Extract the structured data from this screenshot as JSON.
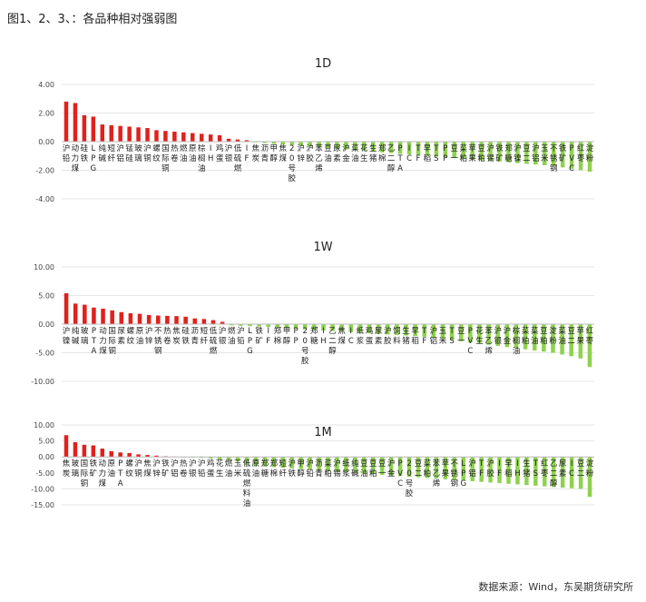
{
  "figure_title": "图1、2、3、：各品种相对强弱图",
  "source": "数据来源：Wind，东吴期货研究所",
  "colors": {
    "positive": "#e0211c",
    "negative": "#8fd14f",
    "axis": "#bbbbbb",
    "grid": "#e6e6e6"
  },
  "chart_data": [
    {
      "type": "bar",
      "title": "1D",
      "ylim": [
        -4,
        4
      ],
      "yticks": [
        4,
        2,
        0,
        -2,
        -4
      ],
      "ytick_labels": [
        "4.00",
        "2.00",
        "0.00",
        "-2.00",
        "-4.00"
      ],
      "grid": true,
      "categories": [
        "沪铅",
        "动力煤",
        "硅铁",
        "LPG",
        "纯碱",
        "短纤",
        "沪铝",
        "锰硅",
        "玻璃",
        "沪铜",
        "螺纹",
        "国际铜",
        "热卷",
        "燃油",
        "原油",
        "棕榈油",
        "IH",
        "鸡蛋",
        "沪银",
        "低硫燃",
        "IF",
        "焦炭",
        "沥青",
        "甲醇",
        "焦煤",
        "20号胶",
        "沪锌",
        "沪胶",
        "苯乙烯",
        "豆油",
        "尿素",
        "沪金",
        "菜油",
        "花生",
        "生猪",
        "郑棉",
        "乙二醇",
        "PTA",
        "IC",
        "TF",
        "早稻",
        "TS",
        "PP",
        "豆一",
        "菜粕",
        "苹果",
        "豆粕",
        "沪锡",
        "铁矿",
        "郑糖",
        "沪镍",
        "豆二",
        "沪铝",
        "玉米",
        "不锈钢",
        "铁矿",
        "PVC",
        "红枣",
        "淀粉"
      ],
      "values": [
        2.8,
        2.7,
        1.85,
        1.75,
        1.2,
        1.15,
        1.1,
        1.05,
        1.0,
        0.95,
        0.8,
        0.75,
        0.7,
        0.65,
        0.6,
        0.55,
        0.5,
        0.45,
        0.2,
        0.15,
        0.1,
        -0.05,
        -0.1,
        -0.15,
        -0.2,
        -0.25,
        -0.3,
        -0.35,
        -0.4,
        -0.45,
        -0.5,
        -0.55,
        -0.6,
        -0.65,
        -0.7,
        -0.75,
        -0.8,
        -0.85,
        -0.9,
        -0.95,
        -1.0,
        -1.05,
        -1.1,
        -1.15,
        -1.2,
        -1.25,
        -1.3,
        -1.35,
        -1.4,
        -1.45,
        -1.5,
        -1.55,
        -1.6,
        -1.65,
        -1.7,
        -1.8,
        -1.9,
        -2.0,
        -2.1
      ]
    },
    {
      "type": "bar",
      "title": "1W",
      "ylim": [
        -10,
        10
      ],
      "yticks": [
        10,
        5,
        0,
        -5,
        -10
      ],
      "ytick_labels": [
        "10.00",
        "5.00",
        "0.00",
        "-5.00",
        "-10.00"
      ],
      "grid": true,
      "categories": [
        "沪镍",
        "纯碱",
        "玻璃",
        "PTA",
        "动力煤",
        "国际铜",
        "尿素",
        "螺纹",
        "原油",
        "沪锌",
        "不锈钢",
        "热卷",
        "焦炭",
        "硅铁",
        "沥青",
        "短纤",
        "低硫燃",
        "沪银",
        "燃油",
        "沪铅",
        "LPG",
        "铁矿",
        "IF",
        "郑棉",
        "甲醇",
        "PP",
        "20号胶",
        "郑糖",
        "IH",
        "乙二醇",
        "焦煤",
        "IC",
        "纸浆",
        "鸡蛋",
        "尿素",
        "沪胶",
        "饲料",
        "生猪",
        "早稻",
        "TF",
        "沪铝",
        "玉米",
        "TS",
        "豆一",
        "PVC",
        "花生",
        "苯乙烯",
        "沪银",
        "沪金",
        "棕榈油",
        "菜粕",
        "菜油",
        "豆粕",
        "淀粉",
        "菜油",
        "豆二",
        "苹果",
        "红枣"
      ],
      "values": [
        5.4,
        3.6,
        3.4,
        2.9,
        2.7,
        2.4,
        2.1,
        1.9,
        1.8,
        1.6,
        1.5,
        1.45,
        1.4,
        1.3,
        1.0,
        0.9,
        0.7,
        0.4,
        -0.2,
        -0.3,
        -0.35,
        -0.4,
        -0.5,
        -0.6,
        -0.7,
        -0.8,
        -0.9,
        -1.0,
        -1.1,
        -1.2,
        -1.3,
        -1.4,
        -1.5,
        -1.6,
        -1.7,
        -1.8,
        -1.9,
        -2.0,
        -2.1,
        -2.2,
        -2.4,
        -2.6,
        -2.8,
        -3.0,
        -3.2,
        -3.4,
        -3.6,
        -3.8,
        -4.0,
        -4.2,
        -4.4,
        -4.6,
        -4.8,
        -5.0,
        -5.3,
        -5.6,
        -6.0,
        -7.5
      ]
    },
    {
      "type": "bar",
      "title": "1M",
      "ylim": [
        -15,
        10
      ],
      "yticks": [
        10,
        5,
        0,
        -5,
        -10,
        -15
      ],
      "ytick_labels": [
        "10.00",
        "5.00",
        "0.00",
        "-5.00",
        "-10.00",
        "-15.00"
      ],
      "grid": true,
      "categories": [
        "焦炭",
        "玻璃",
        "国际铜",
        "铁矿",
        "动力煤",
        "原油",
        "PTA",
        "螺纹",
        "沪铜",
        "焦煤",
        "沪锌",
        "铁矿",
        "沪铝",
        "热卷",
        "沪银",
        "沪铅",
        "鸡蛋",
        "花生",
        "燃油",
        "玉米",
        "低硫燃料油",
        "原油",
        "郑糖",
        "郑棉",
        "短纤",
        "沪铁",
        "甲醇",
        "沪铅",
        "沥青",
        "菜粕",
        "沪锡",
        "纸浆",
        "纯碱",
        "豆油",
        "豆粕",
        "豆一",
        "沪金",
        "PVC",
        "20号胶",
        "豆二",
        "菜粕",
        "苯乙烯",
        "苹果",
        "不锈钢",
        "LPG",
        "沪铝",
        "TF",
        "沪胶",
        "IF",
        "早稻",
        "IH",
        "生猪",
        "TS",
        "红枣",
        "乙二醇",
        "尿素",
        "IC",
        "豆二",
        "淀粉"
      ],
      "values": [
        6.8,
        4.6,
        3.8,
        3.6,
        2.6,
        1.8,
        1.4,
        1.2,
        0.8,
        0.6,
        0.4,
        0.2,
        0.1,
        0.05,
        -0.2,
        -0.3,
        -0.5,
        -0.8,
        -1.1,
        -1.4,
        -2.5,
        -2.8,
        -3.0,
        -3.2,
        -3.4,
        -3.6,
        -3.8,
        -4.0,
        -4.2,
        -4.4,
        -4.6,
        -4.8,
        -5.0,
        -5.2,
        -5.4,
        -5.6,
        -5.8,
        -6.0,
        -6.2,
        -6.4,
        -6.6,
        -6.8,
        -7.0,
        -7.2,
        -7.4,
        -7.6,
        -7.8,
        -8.0,
        -8.2,
        -8.4,
        -8.6,
        -8.8,
        -9.0,
        -9.2,
        -9.4,
        -9.6,
        -9.8,
        -10.0,
        -12.5
      ]
    }
  ]
}
